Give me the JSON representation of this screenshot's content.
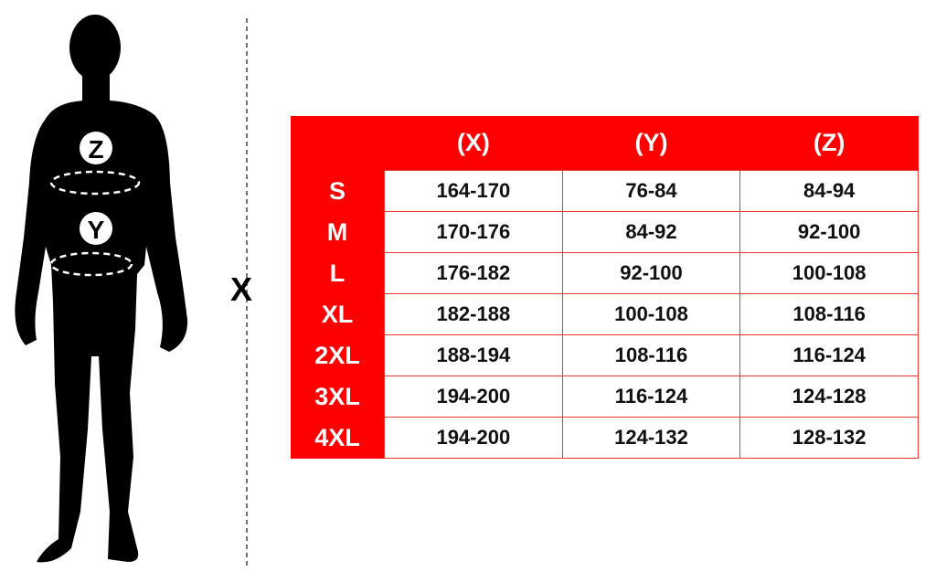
{
  "figure": {
    "markers": [
      "Z",
      "Y"
    ],
    "height_label": "X"
  },
  "table": {
    "accent_color": "#fe0000",
    "headers": [
      "",
      "(X)",
      "(Y)",
      "(Z)"
    ],
    "rows": [
      {
        "size": "S",
        "x": "164-170",
        "y": "76-84",
        "z": "84-94"
      },
      {
        "size": "M",
        "x": "170-176",
        "y": "84-92",
        "z": "92-100"
      },
      {
        "size": "L",
        "x": "176-182",
        "y": "92-100",
        "z": "100-108"
      },
      {
        "size": "XL",
        "x": "182-188",
        "y": "100-108",
        "z": "108-116"
      },
      {
        "size": "2XL",
        "x": "188-194",
        "y": "108-116",
        "z": "116-124"
      },
      {
        "size": "3XL",
        "x": "194-200",
        "y": "116-124",
        "z": "124-128"
      },
      {
        "size": "4XL",
        "x": "194-200",
        "y": "124-132",
        "z": "128-132"
      }
    ]
  }
}
